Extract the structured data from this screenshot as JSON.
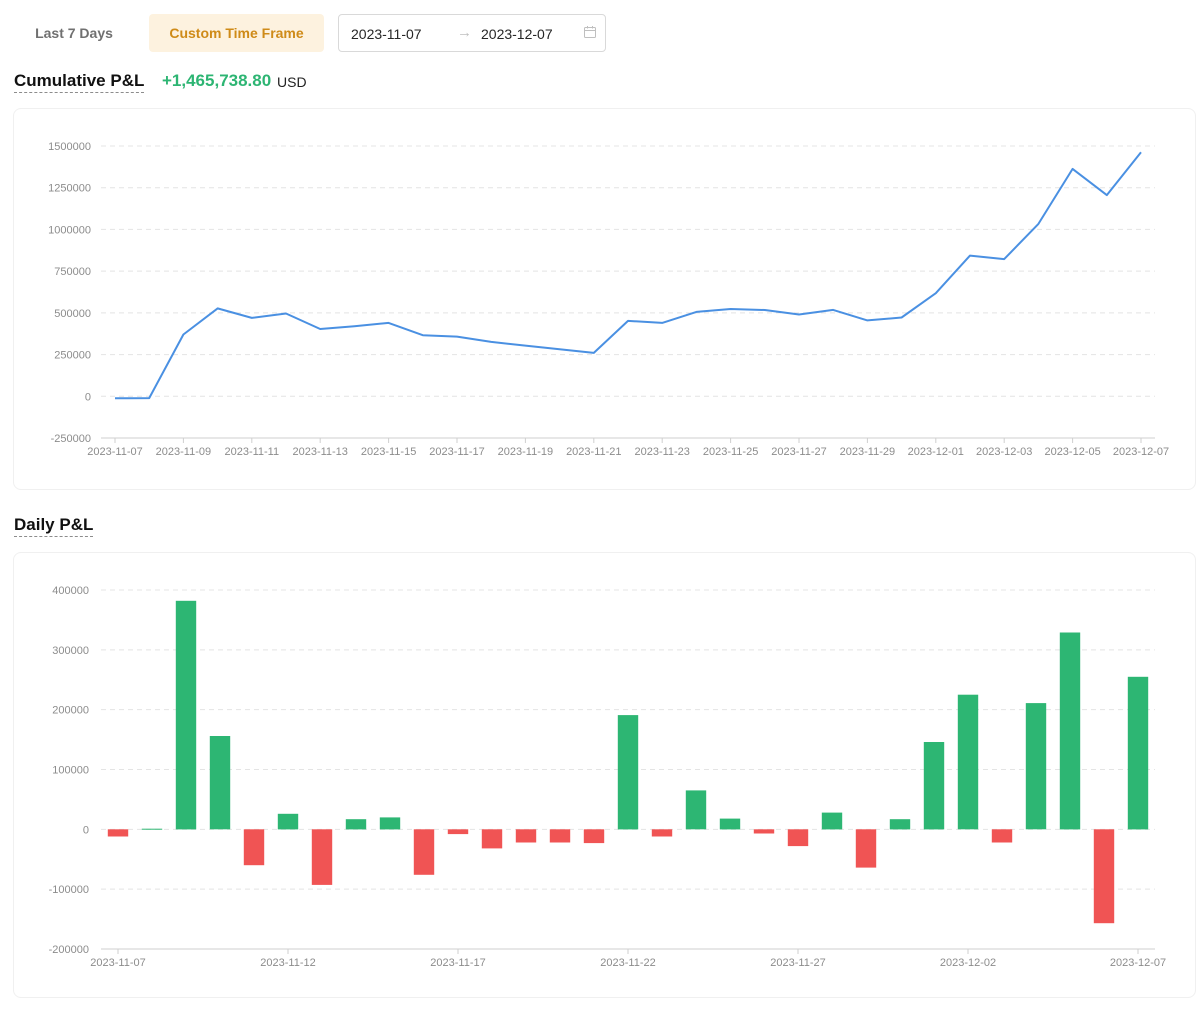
{
  "toolbar": {
    "last7_label": "Last 7 Days",
    "custom_label": "Custom Time Frame",
    "range_start": "2023-11-07",
    "range_separator": "→",
    "range_end": "2023-12-07",
    "calendar_icon": "calendar-icon"
  },
  "cumulative": {
    "title": "Cumulative P&L",
    "value": "+1,465,738.80",
    "unit": "USD"
  },
  "daily": {
    "title": "Daily P&L"
  },
  "colors": {
    "line": "#4a90e2",
    "positive": "#2db673",
    "negative": "#f05454",
    "accent": "#cf8b18"
  },
  "chart_data": [
    {
      "type": "line",
      "title": "Cumulative P&L",
      "xlabel": "",
      "ylabel": "",
      "ylim": [
        -250000,
        1500000
      ],
      "yticks": [
        -250000,
        0,
        250000,
        500000,
        750000,
        1000000,
        1250000,
        1500000
      ],
      "grid": true,
      "x": [
        "2023-11-07",
        "2023-11-08",
        "2023-11-09",
        "2023-11-10",
        "2023-11-11",
        "2023-11-12",
        "2023-11-13",
        "2023-11-14",
        "2023-11-15",
        "2023-11-16",
        "2023-11-17",
        "2023-11-18",
        "2023-11-19",
        "2023-11-20",
        "2023-11-21",
        "2023-11-22",
        "2023-11-23",
        "2023-11-24",
        "2023-11-25",
        "2023-11-26",
        "2023-11-27",
        "2023-11-28",
        "2023-11-29",
        "2023-11-30",
        "2023-12-01",
        "2023-12-02",
        "2023-12-03",
        "2023-12-04",
        "2023-12-05",
        "2023-12-06",
        "2023-12-07"
      ],
      "xtick_labels": [
        "2023-11-07",
        "2023-11-09",
        "2023-11-11",
        "2023-11-13",
        "2023-11-15",
        "2023-11-17",
        "2023-11-19",
        "2023-11-21",
        "2023-11-23",
        "2023-11-25",
        "2023-11-27",
        "2023-11-29",
        "2023-12-01",
        "2023-12-03",
        "2023-12-05",
        "2023-12-07"
      ],
      "series": [
        {
          "values": [
            -12000,
            -11000,
            370000,
            527000,
            470000,
            496000,
            403000,
            420000,
            440000,
            366000,
            358000,
            326000,
            304000,
            282000,
            260000,
            452000,
            440000,
            506000,
            523000,
            517000,
            490000,
            518000,
            455000,
            472000,
            618000,
            843000,
            822000,
            1033000,
            1363000,
            1206000,
            1462000
          ]
        }
      ]
    },
    {
      "type": "bar",
      "title": "Daily P&L",
      "xlabel": "",
      "ylabel": "",
      "ylim": [
        -200000,
        400000
      ],
      "yticks": [
        -200000,
        -100000,
        0,
        100000,
        200000,
        300000,
        400000
      ],
      "grid": true,
      "categories": [
        "2023-11-07",
        "2023-11-08",
        "2023-11-09",
        "2023-11-10",
        "2023-11-11",
        "2023-11-12",
        "2023-11-13",
        "2023-11-14",
        "2023-11-15",
        "2023-11-16",
        "2023-11-17",
        "2023-11-18",
        "2023-11-19",
        "2023-11-20",
        "2023-11-21",
        "2023-11-22",
        "2023-11-23",
        "2023-11-24",
        "2023-11-25",
        "2023-11-26",
        "2023-11-27",
        "2023-11-28",
        "2023-11-29",
        "2023-11-30",
        "2023-12-01",
        "2023-12-02",
        "2023-12-03",
        "2023-12-04",
        "2023-12-05",
        "2023-12-06",
        "2023-12-07"
      ],
      "xtick_labels": [
        "2023-11-07",
        "2023-11-12",
        "2023-11-17",
        "2023-11-22",
        "2023-11-27",
        "2023-12-02",
        "2023-12-07"
      ],
      "series": [
        {
          "values": [
            -12000,
            1000,
            382000,
            156000,
            -60000,
            26000,
            -93000,
            17000,
            20000,
            -76000,
            -8000,
            -32000,
            -22000,
            -22000,
            -23000,
            191000,
            -12000,
            65000,
            18000,
            -7000,
            -28000,
            28000,
            -64000,
            17000,
            146000,
            225000,
            -22000,
            211000,
            329000,
            -157000,
            255000
          ]
        }
      ]
    }
  ]
}
